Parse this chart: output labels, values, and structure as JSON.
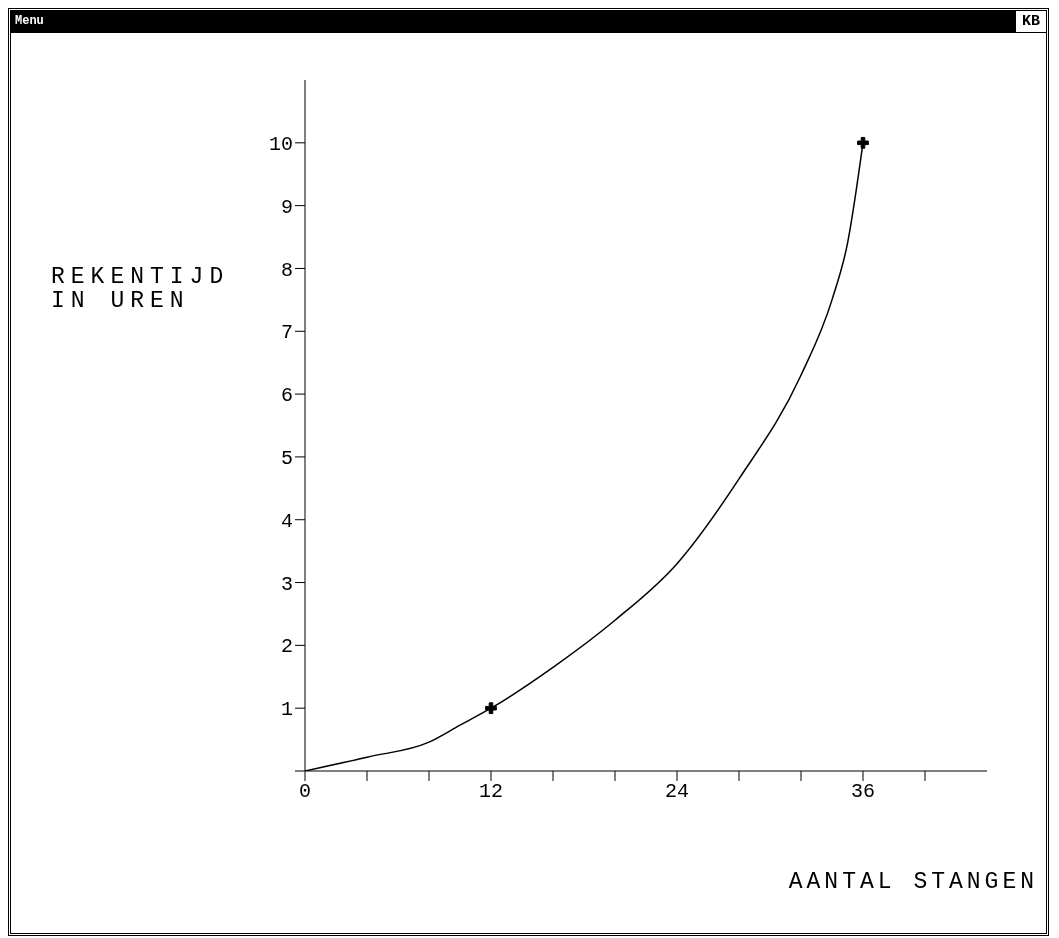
{
  "chart_data": {
    "type": "line",
    "xlabel": "AANTAL STANGEN",
    "ylabel": "REKENTIJD\nIN UREN",
    "annotations": [
      "Menu",
      "KB"
    ],
    "xlim": [
      0,
      44
    ],
    "ylim": [
      0,
      11
    ],
    "xticks": [
      0,
      {
        "value": 4,
        "label": null
      },
      {
        "value": 8,
        "label": null
      },
      12,
      {
        "value": 16,
        "label": null
      },
      {
        "value": 20,
        "label": null
      },
      24,
      {
        "value": 28,
        "label": null
      },
      {
        "value": 32,
        "label": null
      },
      36,
      {
        "value": 40,
        "label": null
      }
    ],
    "yticks": [
      {
        "value": 0,
        "label": null
      },
      1,
      2,
      3,
      4,
      5,
      6,
      7,
      8,
      9,
      10
    ],
    "series": [
      {
        "type": "line",
        "color": "#000000",
        "marker": "none",
        "x": [
          0,
          4,
          8,
          10,
          12,
          16,
          20,
          24,
          28,
          32,
          34,
          35,
          36
        ],
        "values": [
          0,
          0.22,
          0.46,
          0.73,
          1,
          1.65,
          2.4,
          3.3,
          4.65,
          6.3,
          7.5,
          8.4,
          10
        ]
      },
      {
        "type": "scatter",
        "color": "#000000",
        "marker": "cross",
        "x": [
          12,
          36
        ],
        "values": [
          1,
          10
        ]
      }
    ]
  }
}
